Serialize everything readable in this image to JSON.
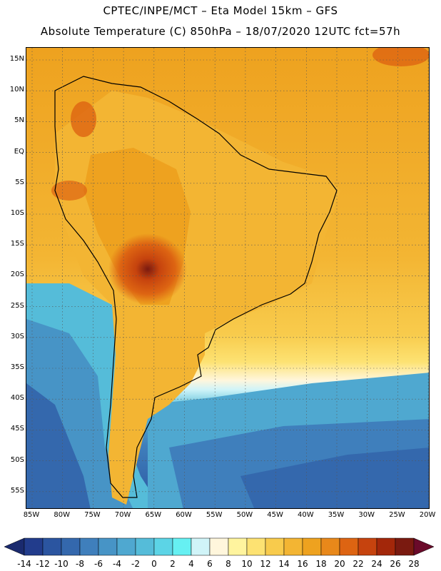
{
  "title_line1": "CPTEC/INPE/MCT –  Eta Model 15km – GFS",
  "title_line2": "Absolute Temperature (C) 850hPa – 18/07/2020 12UTC fct=57h",
  "lat_labels": [
    "15N",
    "10N",
    "5N",
    "EQ",
    "5S",
    "10S",
    "15S",
    "20S",
    "25S",
    "30S",
    "35S",
    "40S",
    "45S",
    "50S",
    "55S"
  ],
  "lon_labels": [
    "85W",
    "80W",
    "75W",
    "70W",
    "65W",
    "60W",
    "55W",
    "50W",
    "45W",
    "40W",
    "35W",
    "30W",
    "25W",
    "20W"
  ],
  "colorbar": {
    "labels": [
      "-14",
      "-12",
      "-10",
      "-8",
      "-6",
      "-4",
      "-2",
      "0",
      "2",
      "4",
      "6",
      "8",
      "10",
      "12",
      "14",
      "16",
      "18",
      "20",
      "22",
      "24",
      "26",
      "28"
    ],
    "colors": [
      "#223c8c",
      "#2b55a0",
      "#3468ad",
      "#3f7fbc",
      "#4794c6",
      "#4fa8d0",
      "#55bcd9",
      "#5cd4e6",
      "#66f0f2",
      "#d0f4f8",
      "#fff6dc",
      "#fff49e",
      "#fde272",
      "#f8cb4c",
      "#f3b533",
      "#eea21f",
      "#e8881a",
      "#dd6412",
      "#c6430e",
      "#a3270a",
      "#7a1a10"
    ],
    "under_color": "#1a2a6e",
    "over_color": "#6a0a2a"
  }
}
